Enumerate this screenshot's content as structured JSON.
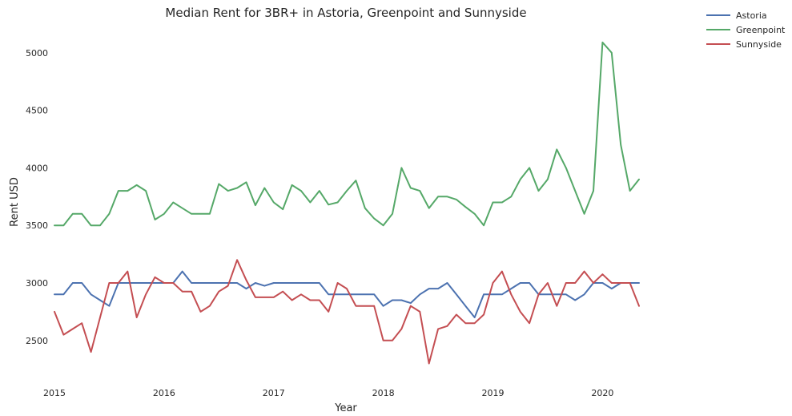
{
  "chart_data": {
    "type": "line",
    "title": "Median Rent for 3BR+ in Astoria, Greenpoint and Sunnyside",
    "xlabel": "Year",
    "ylabel": "Rent USD",
    "xlim": [
      "2015-01",
      "2020-05"
    ],
    "ylim": [
      2150,
      5180
    ],
    "yticks": [
      2500,
      3000,
      3500,
      4000,
      4500,
      5000
    ],
    "xticks": [
      "2015",
      "2016",
      "2017",
      "2018",
      "2019",
      "2020"
    ],
    "grid": false,
    "legend_position": "top-right (outside plot)",
    "x": [
      "2015-01",
      "2015-02",
      "2015-03",
      "2015-04",
      "2015-05",
      "2015-06",
      "2015-07",
      "2015-08",
      "2015-09",
      "2015-10",
      "2015-11",
      "2015-12",
      "2016-01",
      "2016-02",
      "2016-03",
      "2016-04",
      "2016-05",
      "2016-06",
      "2016-07",
      "2016-08",
      "2016-09",
      "2016-10",
      "2016-11",
      "2016-12",
      "2017-01",
      "2017-02",
      "2017-03",
      "2017-04",
      "2017-05",
      "2017-06",
      "2017-07",
      "2017-08",
      "2017-09",
      "2017-10",
      "2017-11",
      "2017-12",
      "2018-01",
      "2018-02",
      "2018-03",
      "2018-04",
      "2018-05",
      "2018-06",
      "2018-07",
      "2018-08",
      "2018-09",
      "2018-10",
      "2018-11",
      "2018-12",
      "2019-01",
      "2019-02",
      "2019-03",
      "2019-04",
      "2019-05",
      "2019-06",
      "2019-07",
      "2019-08",
      "2019-09",
      "2019-10",
      "2019-11",
      "2019-12",
      "2020-01",
      "2020-02",
      "2020-03",
      "2020-04",
      "2020-05"
    ],
    "series": [
      {
        "name": "Astoria",
        "color": "#4c72b0",
        "values": [
          2900,
          2900,
          3000,
          3000,
          2900,
          2850,
          2800,
          3000,
          3000,
          3000,
          3000,
          3000,
          3000,
          3000,
          3100,
          3000,
          3000,
          3000,
          3000,
          3000,
          3000,
          2950,
          3000,
          2975,
          3000,
          3000,
          3000,
          3000,
          3000,
          3000,
          2900,
          2900,
          2900,
          2900,
          2900,
          2900,
          2800,
          2850,
          2850,
          2825,
          2900,
          2950,
          2950,
          3000,
          2900,
          2800,
          2700,
          2900,
          2900,
          2900,
          2950,
          3000,
          3000,
          2900,
          2900,
          2900,
          2900,
          2850,
          2900,
          3000,
          3000,
          2950,
          3000,
          3000,
          3000
        ]
      },
      {
        "name": "Greenpoint",
        "color": "#55a868",
        "values": [
          3500,
          3500,
          3600,
          3600,
          3500,
          3500,
          3600,
          3800,
          3800,
          3850,
          3800,
          3550,
          3600,
          3700,
          3650,
          3600,
          3600,
          3600,
          3860,
          3800,
          3825,
          3875,
          3675,
          3825,
          3700,
          3640,
          3850,
          3800,
          3700,
          3800,
          3680,
          3700,
          3800,
          3890,
          3650,
          3560,
          3500,
          3600,
          4000,
          3825,
          3800,
          3650,
          3750,
          3750,
          3725,
          3660,
          3600,
          3500,
          3700,
          3700,
          3750,
          3900,
          4000,
          3800,
          3900,
          4160,
          4000,
          3800,
          3600,
          3800,
          5090,
          5000,
          4200,
          3800,
          3900
        ]
      },
      {
        "name": "Sunnyside",
        "color": "#c44e52",
        "values": [
          2750,
          2550,
          2600,
          2650,
          2400,
          2700,
          3000,
          3000,
          3100,
          2700,
          2900,
          3050,
          3000,
          3000,
          2925,
          2925,
          2750,
          2800,
          2925,
          2975,
          3200,
          3025,
          2875,
          2875,
          2875,
          2925,
          2850,
          2900,
          2850,
          2850,
          2750,
          3000,
          2950,
          2800,
          2800,
          2800,
          2500,
          2500,
          2600,
          2800,
          2750,
          2300,
          2600,
          2625,
          2725,
          2650,
          2650,
          2725,
          3000,
          3100,
          2900,
          2750,
          2650,
          2900,
          3000,
          2800,
          3000,
          3000,
          3100,
          3000,
          3075,
          3000,
          3000,
          3000,
          2800
        ]
      }
    ]
  }
}
